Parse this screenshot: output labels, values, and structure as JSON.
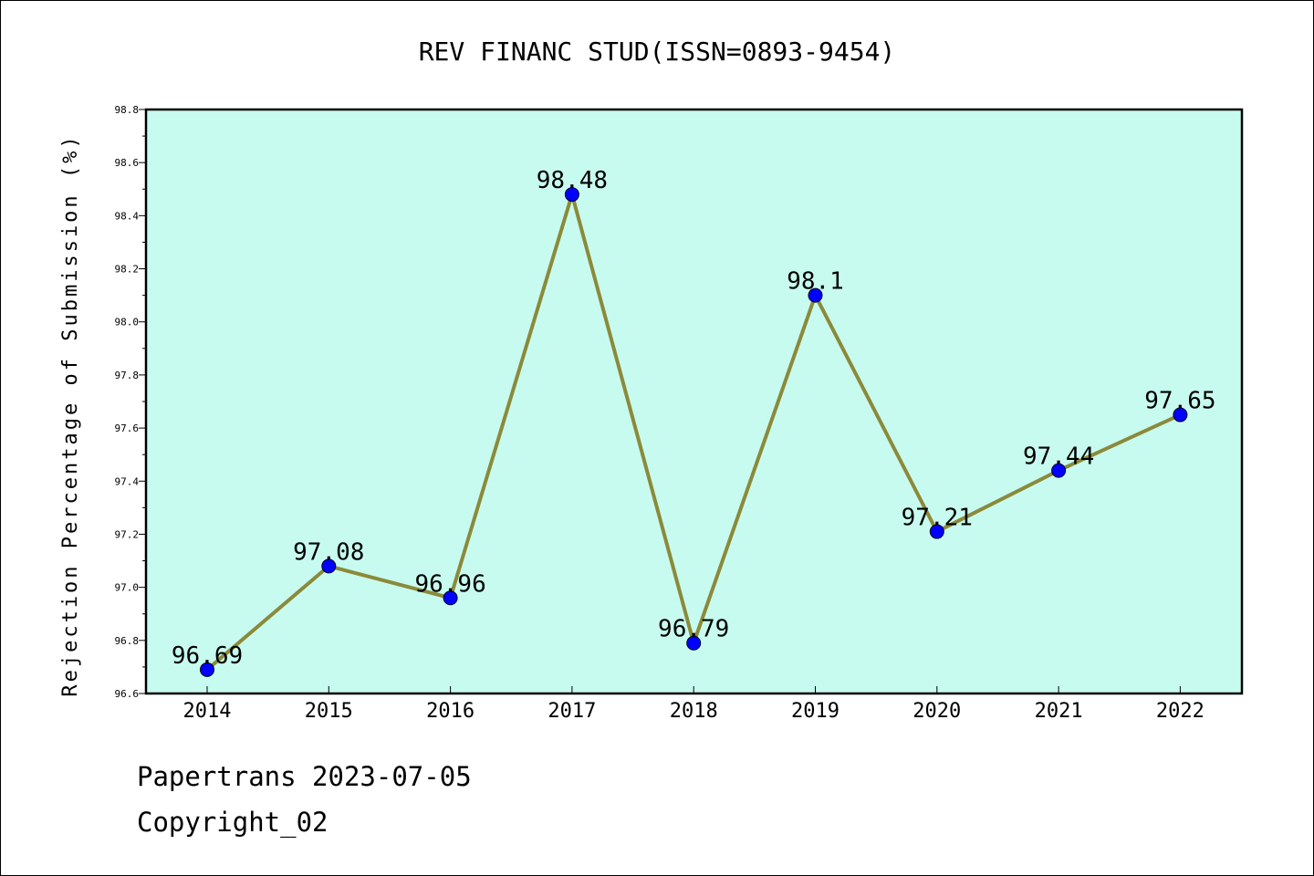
{
  "chart_data": {
    "type": "line",
    "title": "REV FINANC STUD(ISSN=0893-9454)",
    "xlabel": "",
    "ylabel": "Rejection Percentage of Submission (%)",
    "categories": [
      "2014",
      "2015",
      "2016",
      "2017",
      "2018",
      "2019",
      "2020",
      "2021",
      "2022"
    ],
    "values": [
      96.69,
      97.08,
      96.96,
      98.48,
      96.79,
      98.1,
      97.21,
      97.44,
      97.65
    ],
    "data_labels": [
      "96.69",
      "97.08",
      "96.96",
      "98.48",
      "96.79",
      "98.1",
      "97.21",
      "97.44",
      "97.65"
    ],
    "ylim": [
      96.6,
      98.8
    ],
    "yticks": [
      "96.6",
      "96.8",
      "97.0",
      "97.2",
      "97.4",
      "97.6",
      "97.8",
      "98.0",
      "98.2",
      "98.4",
      "98.6",
      "98.8"
    ],
    "grid": false,
    "legend": "none",
    "colors": {
      "plot_background": "#c8fbef",
      "line": "#8b8a3a",
      "marker": "#0000ff"
    }
  },
  "footer": {
    "line1": "Papertrans 2023-07-05",
    "line2": "Copyright_02"
  }
}
